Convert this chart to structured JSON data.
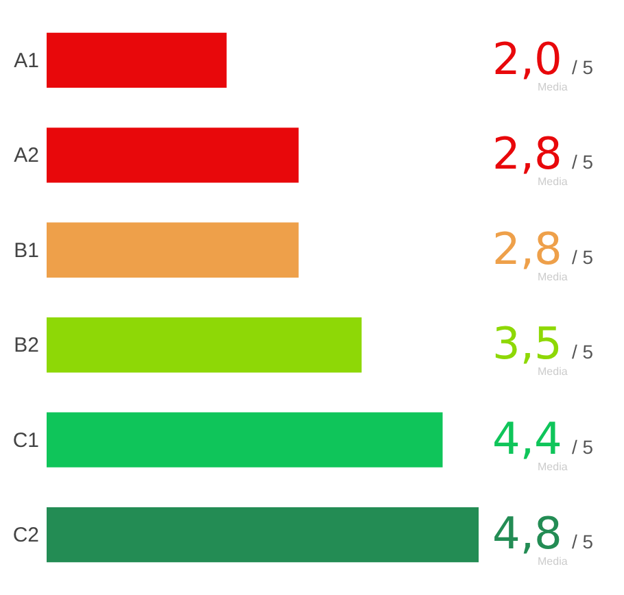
{
  "chart_data": {
    "type": "bar",
    "orientation": "horizontal",
    "categories": [
      "A1",
      "A2",
      "B1",
      "B2",
      "C1",
      "C2"
    ],
    "values": [
      2.0,
      2.8,
      2.8,
      3.5,
      4.4,
      4.8
    ],
    "colors": [
      "#e8080b",
      "#e8080b",
      "#eea04a",
      "#8ed806",
      "#0fc55a",
      "#238c54"
    ],
    "value_labels": [
      "2,0",
      "2,8",
      "2,8",
      "3,5",
      "4,4",
      "4,8"
    ],
    "tick_labels": "y",
    "annotations": [
      "/ 5",
      "Media"
    ]
  }
}
